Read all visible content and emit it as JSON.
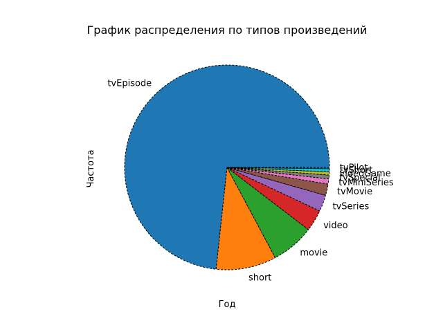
{
  "chart_data": {
    "type": "pie",
    "title": "График распределения по типов произведений",
    "xlabel": "Год",
    "ylabel": "Частота",
    "start_angle_deg": 0,
    "direction": "counterclockwise",
    "wedge_edge": "black dashed",
    "categories": [
      "tvEpisode",
      "short",
      "movie",
      "video",
      "tvSeries",
      "tvMovie",
      "tvMiniSeries",
      "tvSpecial",
      "videoGame",
      "tvShort",
      "tvPilot"
    ],
    "values": [
      73.3,
      9.5,
      6.8,
      3.4,
      2.6,
      1.8,
      0.8,
      0.6,
      0.5,
      0.5,
      0.2
    ],
    "colors": [
      "#1f77b4",
      "#ff7f0e",
      "#2ca02c",
      "#d62728",
      "#9467bd",
      "#8c564b",
      "#e377c2",
      "#7f7f7f",
      "#bcbd22",
      "#17becf",
      "#1f77b4"
    ]
  }
}
